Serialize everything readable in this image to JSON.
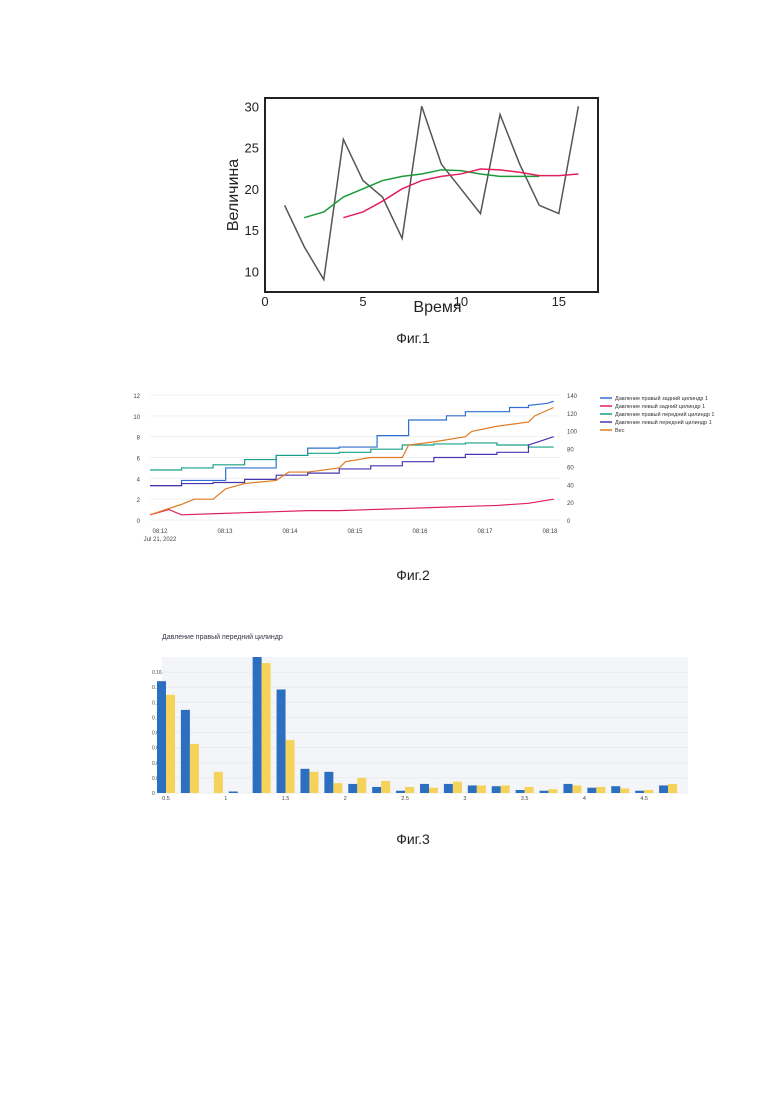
{
  "figures": [
    {
      "caption": "Фиг.1"
    },
    {
      "caption": "Фиг.2"
    },
    {
      "caption": "Фиг.3"
    }
  ],
  "chart_data": [
    {
      "type": "line",
      "xlabel": "Время",
      "ylabel": "Величина",
      "xlim": [
        0,
        17
      ],
      "ylim": [
        7.5,
        31
      ],
      "x_ticks": [
        0,
        5,
        10,
        15
      ],
      "y_ticks": [
        10,
        15,
        20,
        25,
        30
      ],
      "grid": false,
      "series": [
        {
          "color": "#555555",
          "x": [
            1,
            2,
            3,
            4,
            5,
            6,
            7,
            8,
            9,
            10,
            11,
            12,
            13,
            14,
            15,
            16
          ],
          "values": [
            18,
            13,
            9,
            26,
            21,
            19,
            14,
            30,
            23,
            20,
            17,
            29,
            23,
            18,
            17,
            30
          ]
        },
        {
          "color": "#1a9a3a",
          "x": [
            2,
            3,
            4,
            5,
            6,
            7,
            8,
            9,
            10,
            11,
            12,
            13,
            14
          ],
          "values": [
            16.5,
            17.2,
            19,
            20,
            21,
            21.5,
            21.8,
            22.3,
            22.2,
            21.8,
            21.5,
            21.5,
            21.5
          ]
        },
        {
          "color": "#e0205a",
          "x": [
            4,
            5,
            6,
            7,
            8,
            9,
            10,
            11,
            12,
            13,
            14,
            15,
            16
          ],
          "values": [
            16.5,
            17.2,
            18.5,
            20,
            21,
            21.5,
            21.8,
            22.4,
            22.3,
            22,
            21.6,
            21.6,
            21.8
          ]
        }
      ]
    },
    {
      "type": "line",
      "x_tick_labels": [
        "08:12",
        "08:13",
        "08:14",
        "08:15",
        "08:16",
        "08:17",
        "08:18"
      ],
      "x_date_label": "Jul 21, 2022",
      "y_left_ticks": [
        0,
        2,
        4,
        6,
        8,
        10,
        12
      ],
      "y_right_ticks": [
        0,
        20,
        40,
        60,
        80,
        100,
        120,
        140
      ],
      "legend_position": "right",
      "series": [
        {
          "name": "Давление правый задний цилиндр 1",
          "color": "#2f6fd0",
          "x": [
            0,
            0.5,
            0.5,
            1.2,
            1.2,
            2,
            2,
            2.5,
            2.5,
            3,
            3,
            3.6,
            3.6,
            4.1,
            4.1,
            4.7,
            4.7,
            5,
            5,
            5.7,
            5.7,
            6,
            6,
            6.3,
            6.4
          ],
          "values": [
            3.3,
            3.3,
            3.8,
            3.8,
            5,
            5,
            6.2,
            6.2,
            6.9,
            6.9,
            7,
            7,
            8.1,
            8.1,
            9.6,
            9.6,
            10,
            10,
            10.4,
            10.4,
            10.8,
            10.8,
            11,
            11.2,
            11.4
          ]
        },
        {
          "name": "Давление левый задний цилиндр 1",
          "color": "#e0205a",
          "x": [
            0,
            0.3,
            0.5,
            1,
            1.5,
            2,
            2.5,
            3,
            3.5,
            4,
            4.5,
            5,
            5.5,
            6,
            6.4
          ],
          "values": [
            0.5,
            1,
            0.5,
            0.6,
            0.7,
            0.8,
            0.9,
            0.9,
            1,
            1.1,
            1.2,
            1.3,
            1.4,
            1.6,
            2
          ]
        },
        {
          "name": "Давление правый передний цилиндр 1",
          "color": "#16a085",
          "x": [
            0,
            0.5,
            0.5,
            1,
            1,
            1.5,
            1.5,
            2,
            2,
            2.5,
            2.5,
            3,
            3,
            3.5,
            3.5,
            4,
            4,
            4.5,
            4.5,
            5,
            5,
            5.5,
            5.5,
            6,
            6,
            6.4
          ],
          "values": [
            4.8,
            4.8,
            5,
            5,
            5.3,
            5.3,
            5.8,
            5.8,
            6.2,
            6.2,
            6.4,
            6.4,
            6.5,
            6.5,
            6.8,
            6.8,
            7.2,
            7.2,
            7.3,
            7.3,
            7.4,
            7.4,
            7.2,
            7.2,
            7,
            7
          ]
        },
        {
          "name": "Давление левый передний цилиндр 1",
          "color": "#4a35b0",
          "x": [
            0,
            0.5,
            0.5,
            1,
            1,
            1.5,
            1.5,
            2,
            2,
            2.5,
            2.5,
            3,
            3,
            3.5,
            3.5,
            4,
            4,
            4.5,
            4.5,
            5,
            5,
            5.5,
            5.5,
            6,
            6,
            6.4
          ],
          "values": [
            3.3,
            3.3,
            3.5,
            3.5,
            3.6,
            3.6,
            3.9,
            3.9,
            4.3,
            4.3,
            4.5,
            4.5,
            4.9,
            4.9,
            5.2,
            5.2,
            5.6,
            5.6,
            6,
            6,
            6.3,
            6.3,
            6.5,
            6.5,
            7.2,
            8
          ]
        },
        {
          "name": "Вес",
          "color": "#e07a20",
          "x": [
            0,
            0.5,
            0.7,
            1,
            1.2,
            1.5,
            2,
            2.2,
            2.5,
            3,
            3.1,
            3.5,
            4,
            4.1,
            4.5,
            5,
            5.1,
            5.5,
            6,
            6.1,
            6.4
          ],
          "values": [
            0.5,
            1.5,
            2,
            2,
            3,
            3.5,
            3.8,
            4.6,
            4.6,
            5,
            5.6,
            6,
            6,
            7.2,
            7.5,
            8,
            8.5,
            9,
            9.4,
            10,
            10.8
          ]
        }
      ]
    },
    {
      "type": "bar",
      "title": "Давление правый передний цилиндр",
      "x_tick_labels": [
        "0.5",
        "1",
        "1.5",
        "2",
        "2.5",
        "3",
        "3.5",
        "4",
        "4.5"
      ],
      "x_ticks": [
        0.5,
        1,
        1.5,
        2,
        2.5,
        3,
        3.5,
        4,
        4.5
      ],
      "y_ticks": [
        0,
        0.02,
        0.04,
        0.06,
        0.08,
        0.1,
        0.12,
        0.14,
        0.16
      ],
      "ylim": [
        0,
        0.18
      ],
      "categories": [
        0.5,
        0.7,
        0.9,
        1.1,
        1.3,
        1.5,
        1.7,
        1.9,
        2.1,
        2.3,
        2.5,
        2.7,
        2.9,
        3.1,
        3.3,
        3.5,
        3.7,
        3.9,
        4.1,
        4.3,
        4.5,
        4.7
      ],
      "series": [
        {
          "color": "#2c6fc0",
          "values": [
            0.148,
            0.11,
            0,
            0.002,
            0.18,
            0.137,
            0.032,
            0.028,
            0.012,
            0.008,
            0.003,
            0.012,
            0.012,
            0.01,
            0.009,
            0.004,
            0.003,
            0.012,
            0.007,
            0.009,
            0.003,
            0.01
          ]
        },
        {
          "color": "#f5d25a",
          "values": [
            0.13,
            0.065,
            0.028,
            0,
            0.172,
            0.07,
            0.028,
            0.013,
            0.02,
            0.016,
            0.008,
            0.007,
            0.015,
            0.01,
            0.01,
            0.008,
            0.005,
            0.01,
            0.008,
            0.006,
            0.004,
            0.012
          ]
        }
      ]
    }
  ]
}
